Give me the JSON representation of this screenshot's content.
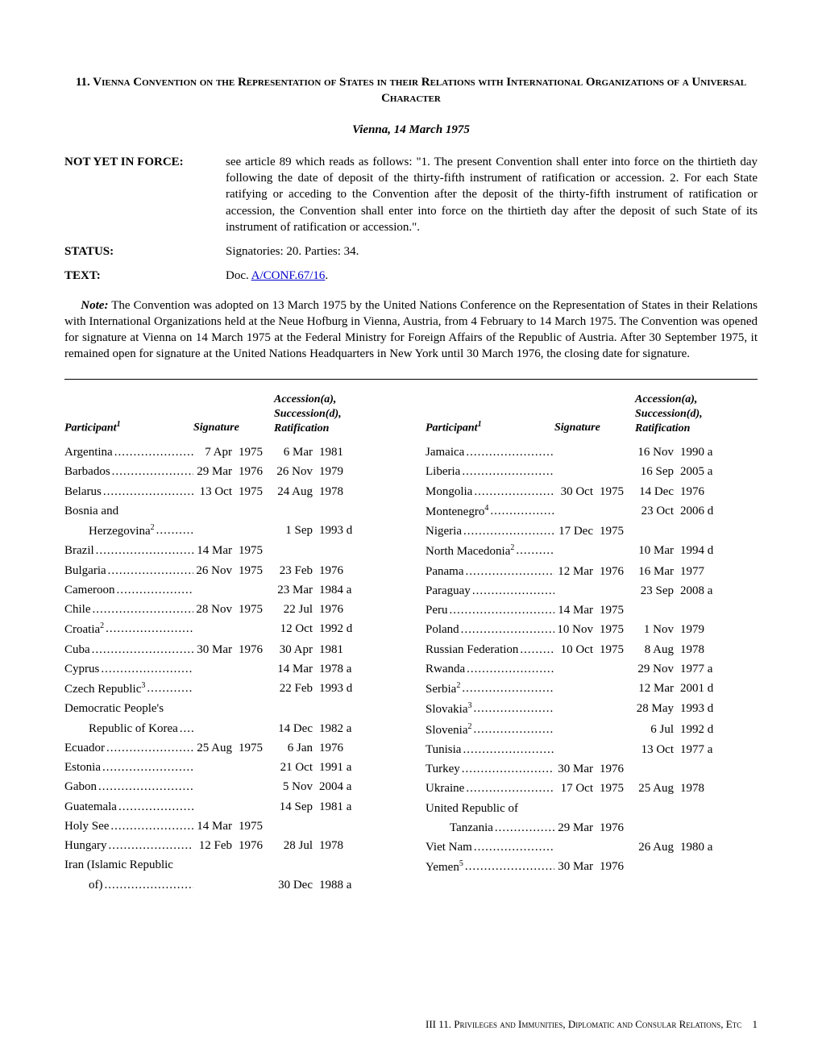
{
  "title": "11. Vienna Convention on the Representation of States in their Relations with International Organizations of a Universal Character",
  "subtitle": "Vienna, 14 March 1975",
  "info": {
    "force_label": "NOT YET IN FORCE:",
    "force_text": "see article 89 which reads as follows: \"1. The present Convention shall enter into force on the thirtieth day following the date of deposit of the thirty-fifth instrument of ratification or accession. 2. For each State ratifying or acceding to the Convention after the deposit of the thirty-fifth instrument of ratification or accession, the Convention shall enter into force on the thirtieth day after the deposit of such State of its instrument of ratification or accession.\".",
    "status_label": "STATUS:",
    "status_text": "Signatories: 20. Parties: 34.",
    "text_label": "TEXT:",
    "text_prefix": "Doc. ",
    "text_link": " A/CONF.67/16",
    "text_suffix": "."
  },
  "note": {
    "label": "Note:",
    "text": " The Convention was adopted on 13 March 1975 by the United Nations Conference on the Representation of States in their Relations with International Organizations held at the Neue Hofburg in Vienna, Austria, from 4 February to 14 March 1975.  The Convention was opened for signature at Vienna on 14 March 1975 at the Federal Ministry for Foreign Affairs of the Republic of Austria.  After 30 September 1975, it remained open for signature at the United Nations Headquarters in New York until 30 March 1976, the closing date for signature."
  },
  "headers": {
    "participant": "Participant",
    "participant_sup": "1",
    "signature": "Signature",
    "ratification_l1": "Accession(a),",
    "ratification_l2": "Succession(d),",
    "ratification_l3": "Ratification"
  },
  "left_rows": [
    {
      "name": "Argentina",
      "sup": "",
      "sig_d": "7 Apr",
      "sig_y": "1975",
      "rat_d": "6 Mar",
      "rat_y": "1981",
      "indent": false
    },
    {
      "name": "Barbados",
      "sup": "",
      "sig_d": "29 Mar",
      "sig_y": "1976",
      "rat_d": "26 Nov",
      "rat_y": "1979",
      "indent": false
    },
    {
      "name": "Belarus",
      "sup": "",
      "sig_d": "13 Oct",
      "sig_y": "1975",
      "rat_d": "24 Aug",
      "rat_y": "1978",
      "indent": false
    },
    {
      "name": "Bosnia and",
      "sup": "",
      "sig_d": "",
      "sig_y": "",
      "rat_d": "",
      "rat_y": "",
      "indent": false,
      "noleader": true
    },
    {
      "name": "Herzegovina",
      "sup": "2",
      "sig_d": "",
      "sig_y": "",
      "rat_d": "1 Sep",
      "rat_y": "1993 d",
      "indent": true
    },
    {
      "name": "Brazil",
      "sup": "",
      "sig_d": "14 Mar",
      "sig_y": "1975",
      "rat_d": "",
      "rat_y": "",
      "indent": false
    },
    {
      "name": "Bulgaria",
      "sup": "",
      "sig_d": "26 Nov",
      "sig_y": "1975",
      "rat_d": "23 Feb",
      "rat_y": "1976",
      "indent": false
    },
    {
      "name": "Cameroon",
      "sup": "",
      "sig_d": "",
      "sig_y": "",
      "rat_d": "23 Mar",
      "rat_y": "1984 a",
      "indent": false
    },
    {
      "name": "Chile",
      "sup": "",
      "sig_d": "28 Nov",
      "sig_y": "1975",
      "rat_d": "22 Jul",
      "rat_y": "1976",
      "indent": false
    },
    {
      "name": "Croatia",
      "sup": "2",
      "sig_d": "",
      "sig_y": "",
      "rat_d": "12 Oct",
      "rat_y": "1992 d",
      "indent": false
    },
    {
      "name": "Cuba",
      "sup": "",
      "sig_d": "30 Mar",
      "sig_y": "1976",
      "rat_d": "30 Apr",
      "rat_y": "1981",
      "indent": false
    },
    {
      "name": "Cyprus",
      "sup": "",
      "sig_d": "",
      "sig_y": "",
      "rat_d": "14 Mar",
      "rat_y": "1978 a",
      "indent": false
    },
    {
      "name": "Czech Republic",
      "sup": "3",
      "sig_d": "",
      "sig_y": "",
      "rat_d": "22 Feb",
      "rat_y": "1993 d",
      "indent": false
    },
    {
      "name": "Democratic People's",
      "sup": "",
      "sig_d": "",
      "sig_y": "",
      "rat_d": "",
      "rat_y": "",
      "indent": false,
      "noleader": true
    },
    {
      "name": "Republic of Korea",
      "sup": "",
      "sig_d": "",
      "sig_y": "",
      "rat_d": "14 Dec",
      "rat_y": "1982 a",
      "indent": true
    },
    {
      "name": "Ecuador",
      "sup": "",
      "sig_d": "25 Aug",
      "sig_y": "1975",
      "rat_d": "6 Jan",
      "rat_y": "1976",
      "indent": false
    },
    {
      "name": "Estonia",
      "sup": "",
      "sig_d": "",
      "sig_y": "",
      "rat_d": "21 Oct",
      "rat_y": "1991 a",
      "indent": false
    },
    {
      "name": "Gabon",
      "sup": "",
      "sig_d": "",
      "sig_y": "",
      "rat_d": "5 Nov",
      "rat_y": "2004 a",
      "indent": false
    },
    {
      "name": "Guatemala",
      "sup": "",
      "sig_d": "",
      "sig_y": "",
      "rat_d": "14 Sep",
      "rat_y": "1981 a",
      "indent": false
    },
    {
      "name": "Holy See",
      "sup": "",
      "sig_d": "14 Mar",
      "sig_y": "1975",
      "rat_d": "",
      "rat_y": "",
      "indent": false
    },
    {
      "name": "Hungary",
      "sup": "",
      "sig_d": "12 Feb",
      "sig_y": "1976",
      "rat_d": "28 Jul",
      "rat_y": "1978",
      "indent": false
    },
    {
      "name": "Iran (Islamic Republic",
      "sup": "",
      "sig_d": "",
      "sig_y": "",
      "rat_d": "",
      "rat_y": "",
      "indent": false,
      "noleader": true
    },
    {
      "name": "of)",
      "sup": "",
      "sig_d": "",
      "sig_y": "",
      "rat_d": "30 Dec",
      "rat_y": "1988 a",
      "indent": true
    }
  ],
  "right_rows": [
    {
      "name": "Jamaica",
      "sup": "",
      "sig_d": "",
      "sig_y": "",
      "rat_d": "16 Nov",
      "rat_y": "1990 a",
      "indent": false
    },
    {
      "name": "Liberia",
      "sup": "",
      "sig_d": "",
      "sig_y": "",
      "rat_d": "16 Sep",
      "rat_y": "2005 a",
      "indent": false
    },
    {
      "name": "Mongolia",
      "sup": "",
      "sig_d": "30 Oct",
      "sig_y": "1975",
      "rat_d": "14 Dec",
      "rat_y": "1976",
      "indent": false
    },
    {
      "name": "Montenegro",
      "sup": "4",
      "sig_d": "",
      "sig_y": "",
      "rat_d": "23 Oct",
      "rat_y": "2006 d",
      "indent": false
    },
    {
      "name": "Nigeria",
      "sup": "",
      "sig_d": "17 Dec",
      "sig_y": "1975",
      "rat_d": "",
      "rat_y": "",
      "indent": false
    },
    {
      "name": "North Macedonia",
      "sup": "2",
      "sig_d": "",
      "sig_y": "",
      "rat_d": "10 Mar",
      "rat_y": "1994 d",
      "indent": false
    },
    {
      "name": "Panama",
      "sup": "",
      "sig_d": "12 Mar",
      "sig_y": "1976",
      "rat_d": "16 Mar",
      "rat_y": "1977",
      "indent": false
    },
    {
      "name": "Paraguay",
      "sup": "",
      "sig_d": "",
      "sig_y": "",
      "rat_d": "23 Sep",
      "rat_y": "2008 a",
      "indent": false
    },
    {
      "name": "Peru",
      "sup": "",
      "sig_d": "14 Mar",
      "sig_y": "1975",
      "rat_d": "",
      "rat_y": "",
      "indent": false
    },
    {
      "name": "Poland",
      "sup": "",
      "sig_d": "10 Nov",
      "sig_y": "1975",
      "rat_d": "1 Nov",
      "rat_y": "1979",
      "indent": false
    },
    {
      "name": "Russian Federation",
      "sup": "",
      "sig_d": "10 Oct",
      "sig_y": "1975",
      "rat_d": "8 Aug",
      "rat_y": "1978",
      "indent": false
    },
    {
      "name": "Rwanda",
      "sup": "",
      "sig_d": "",
      "sig_y": "",
      "rat_d": "29 Nov",
      "rat_y": "1977 a",
      "indent": false
    },
    {
      "name": "Serbia",
      "sup": "2",
      "sig_d": "",
      "sig_y": "",
      "rat_d": "12 Mar",
      "rat_y": "2001 d",
      "indent": false
    },
    {
      "name": "Slovakia",
      "sup": "3",
      "sig_d": "",
      "sig_y": "",
      "rat_d": "28 May",
      "rat_y": "1993 d",
      "indent": false
    },
    {
      "name": "Slovenia",
      "sup": "2",
      "sig_d": "",
      "sig_y": "",
      "rat_d": "6 Jul",
      "rat_y": "1992 d",
      "indent": false
    },
    {
      "name": "Tunisia",
      "sup": "",
      "sig_d": "",
      "sig_y": "",
      "rat_d": "13 Oct",
      "rat_y": "1977 a",
      "indent": false
    },
    {
      "name": "Turkey",
      "sup": "",
      "sig_d": "30 Mar",
      "sig_y": "1976",
      "rat_d": "",
      "rat_y": "",
      "indent": false
    },
    {
      "name": "Ukraine",
      "sup": "",
      "sig_d": "17 Oct",
      "sig_y": "1975",
      "rat_d": "25 Aug",
      "rat_y": "1978",
      "indent": false
    },
    {
      "name": "United Republic of",
      "sup": "",
      "sig_d": "",
      "sig_y": "",
      "rat_d": "",
      "rat_y": "",
      "indent": false,
      "noleader": true
    },
    {
      "name": "Tanzania",
      "sup": "",
      "sig_d": "29 Mar",
      "sig_y": "1976",
      "rat_d": "",
      "rat_y": "",
      "indent": true
    },
    {
      "name": "Viet Nam",
      "sup": "",
      "sig_d": "",
      "sig_y": "",
      "rat_d": "26 Aug",
      "rat_y": "1980 a",
      "indent": false
    },
    {
      "name": "Yemen",
      "sup": "5",
      "sig_d": "30 Mar",
      "sig_y": "1976",
      "rat_d": "",
      "rat_y": "",
      "indent": false
    }
  ],
  "footer": {
    "text": "III 11.   Privileges and Immunities, Diplomatic and Consular Relations, Etc",
    "page": "1"
  }
}
